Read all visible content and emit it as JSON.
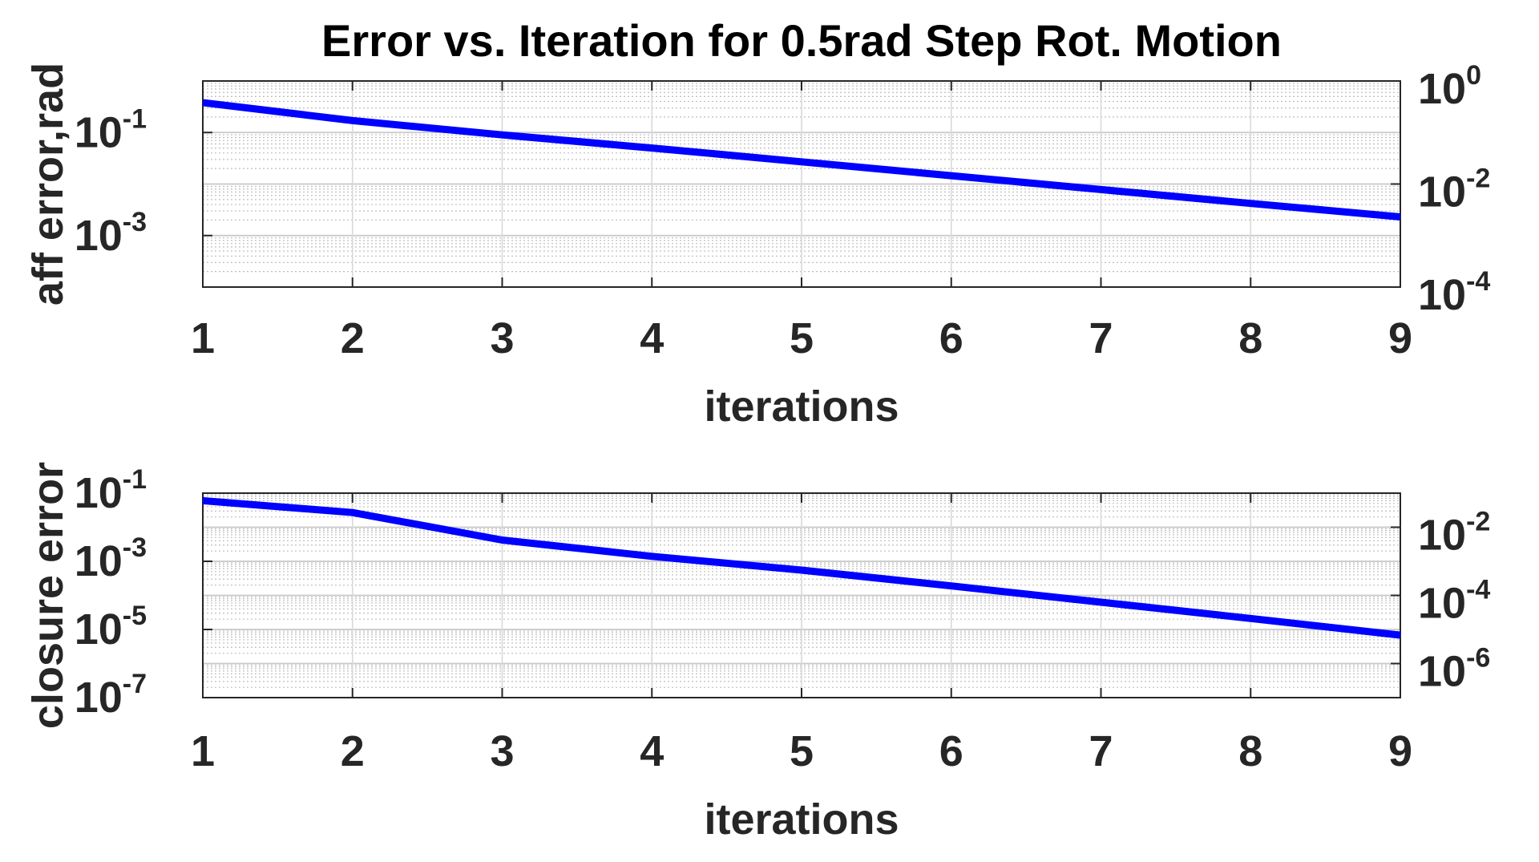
{
  "title": "Error vs. Iteration for 0.5rad Step Rot. Motion",
  "colors": {
    "line": "#0000ff",
    "axes": "#262626",
    "grid": "#bdbdbd",
    "background": "#ffffff"
  },
  "chart_data": [
    {
      "type": "line",
      "xlabel": "iterations",
      "ylabel": "aff error,rad",
      "x": [
        1,
        2,
        3,
        4,
        5,
        6,
        7,
        8,
        9
      ],
      "xlim": [
        1,
        9
      ],
      "xticks": [
        "1",
        "2",
        "3",
        "4",
        "5",
        "6",
        "7",
        "8",
        "9"
      ],
      "ylim": [
        0.0001,
        1
      ],
      "yscale": "log",
      "yticks": [
        {
          "value": 0.1,
          "base": "10",
          "exp": "-1"
        },
        {
          "value": 0.001,
          "base": "10",
          "exp": "-3"
        }
      ],
      "yticks_right": [
        {
          "value": 1,
          "base": "10",
          "exp": "0"
        },
        {
          "value": 0.01,
          "base": "10",
          "exp": "-2"
        },
        {
          "value": 0.0001,
          "base": "10",
          "exp": "-4"
        }
      ],
      "grid": true,
      "series": [
        {
          "values": [
            0.38,
            0.17,
            0.09,
            0.05,
            0.027,
            0.0145,
            0.0078,
            0.0042,
            0.0023
          ],
          "color": "#0000ff"
        }
      ]
    },
    {
      "type": "line",
      "xlabel": "iterations",
      "ylabel": "closure error",
      "x": [
        1,
        2,
        3,
        4,
        5,
        6,
        7,
        8,
        9
      ],
      "xlim": [
        1,
        9
      ],
      "xticks": [
        "1",
        "2",
        "3",
        "4",
        "5",
        "6",
        "7",
        "8",
        "9"
      ],
      "ylim": [
        1e-07,
        0.1
      ],
      "yscale": "log",
      "yticks": [
        {
          "value": 0.1,
          "base": "10",
          "exp": "-1"
        },
        {
          "value": 0.001,
          "base": "10",
          "exp": "-3"
        },
        {
          "value": 1e-05,
          "base": "10",
          "exp": "-5"
        },
        {
          "value": 1e-07,
          "base": "10",
          "exp": "-7"
        }
      ],
      "yticks_right": [
        {
          "value": 0.01,
          "base": "10",
          "exp": "-2"
        },
        {
          "value": 0.0001,
          "base": "10",
          "exp": "-4"
        },
        {
          "value": 1e-06,
          "base": "10",
          "exp": "-6"
        }
      ],
      "grid": true,
      "series": [
        {
          "values": [
            0.06,
            0.027,
            0.0042,
            0.0014,
            0.00055,
            0.00019,
            6.3e-05,
            2.1e-05,
            6.8e-06
          ],
          "color": "#0000ff"
        }
      ]
    }
  ]
}
